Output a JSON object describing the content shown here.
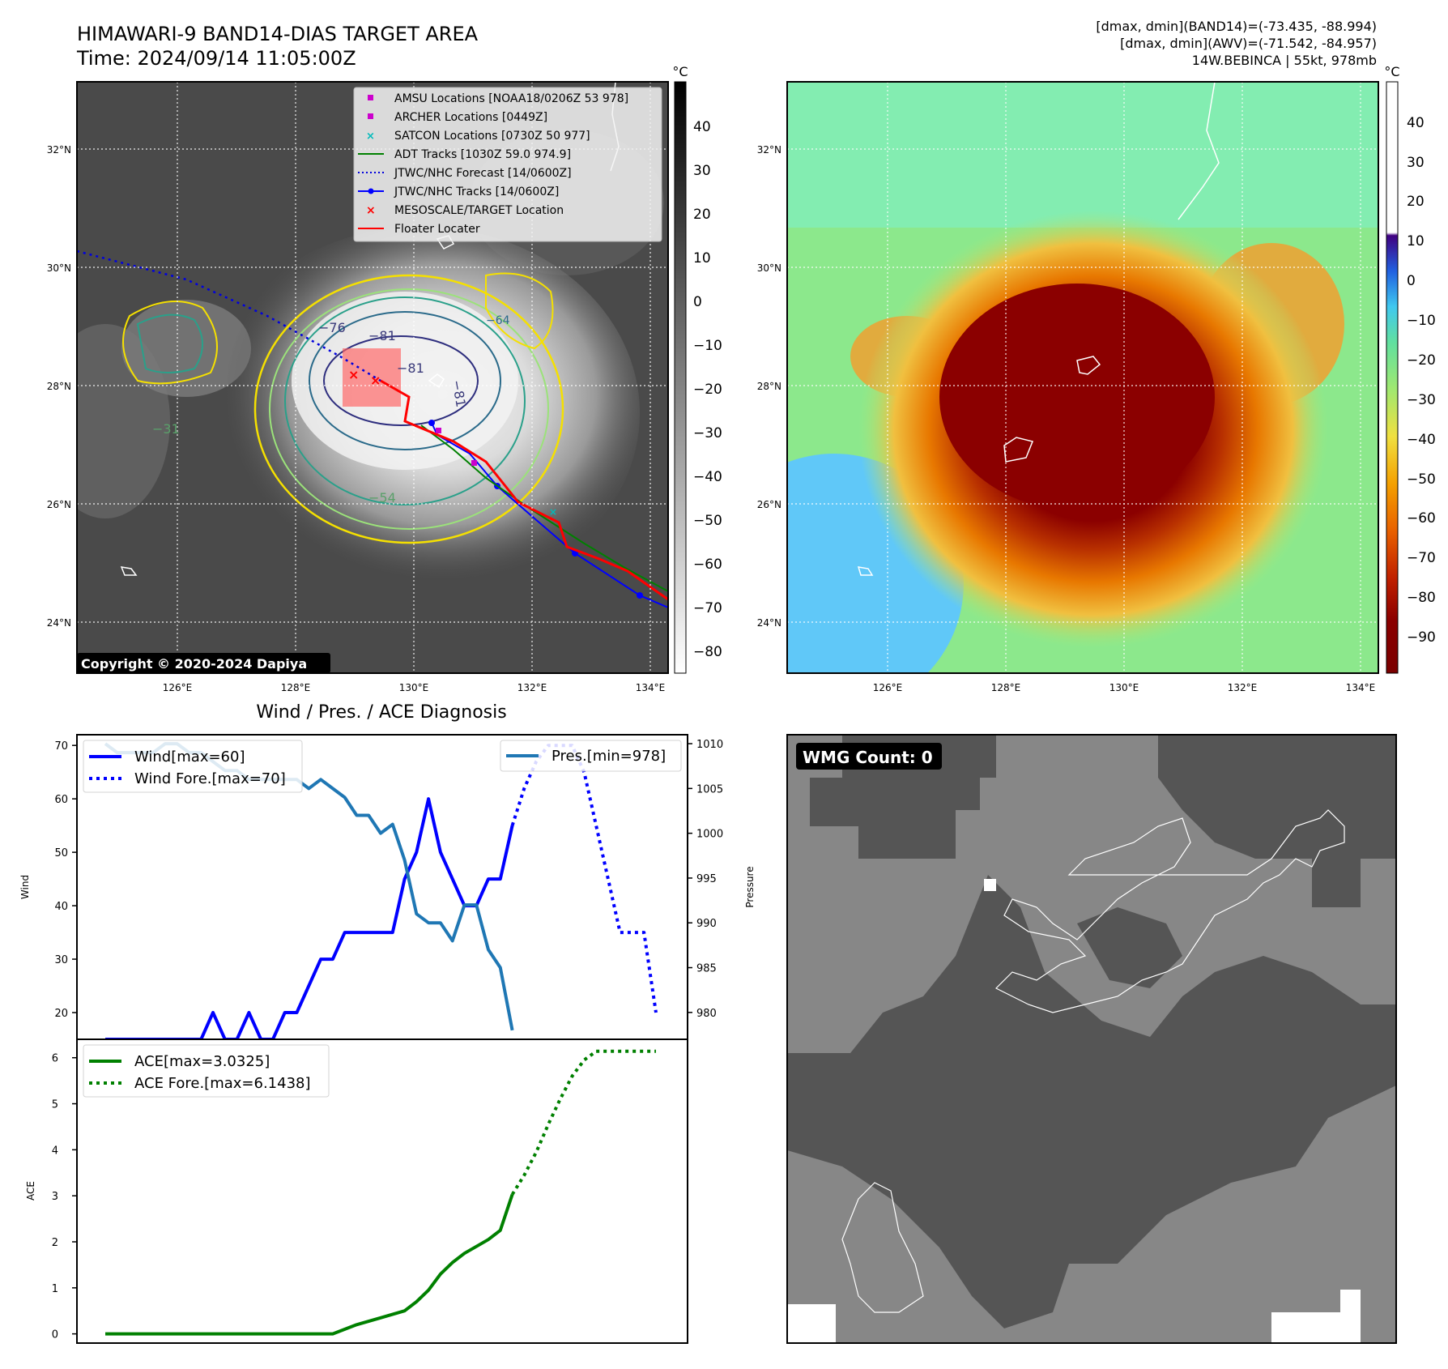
{
  "header": {
    "title_line1": "HIMAWARI-9 BAND14-DIAS TARGET AREA",
    "title_line2": "Time: 2024/09/14 11:05:00Z",
    "info_line1": "[dmax, dmin](BAND14)=(-73.435, -88.994)",
    "info_line2": "[dmax, dmin](AWV)=(-71.542, -84.957)",
    "info_line3": "14W.BEBINCA | 55kt, 978mb"
  },
  "ir_map": {
    "copyright": "Copyright © 2020-2024 Dapiya",
    "lat_labels": [
      "32°N",
      "30°N",
      "28°N",
      "26°N",
      "24°N"
    ],
    "lon_labels": [
      "126°E",
      "128°E",
      "130°E",
      "132°E",
      "134°E"
    ],
    "colorbar_unit": "°C",
    "colorbar_ticks": [
      "40",
      "30",
      "20",
      "10",
      "0",
      "−10",
      "−20",
      "−30",
      "−40",
      "−50",
      "−60",
      "−70",
      "−80"
    ],
    "contour_labels": [
      "−76",
      "−81",
      "−81",
      "−81",
      "−64",
      "−31",
      "−54"
    ],
    "legend": [
      "AMSU Locations [NOAA18/0206Z 53 978]",
      "ARCHER Locations [0449Z]",
      "SATCON Locations [0730Z 50 977]",
      "ADT Tracks [1030Z 59.0 974.9]",
      "JTWC/NHC Forecast [14/0600Z]",
      "JTWC/NHC Tracks [14/0600Z]",
      "MESOSCALE/TARGET Location",
      "Floater Locater"
    ]
  },
  "color_map": {
    "lat_labels": [
      "32°N",
      "30°N",
      "28°N",
      "26°N",
      "24°N"
    ],
    "lon_labels": [
      "126°E",
      "128°E",
      "130°E",
      "132°E",
      "134°E"
    ],
    "colorbar_unit": "°C",
    "colorbar_ticks": [
      "40",
      "30",
      "20",
      "10",
      "0",
      "−10",
      "−20",
      "−30",
      "−40",
      "−50",
      "−60",
      "−70",
      "−80",
      "−90"
    ]
  },
  "wmg": {
    "label": "WMG Count: 0"
  },
  "colors": {
    "wind": "#0000ff",
    "pressure": "#1f77b4",
    "ace": "#008000",
    "target": "#ff0000"
  },
  "chart_data": [
    {
      "type": "line",
      "title": "Wind / Pres. / ACE Diagnosis",
      "xlabel": "",
      "ylabel": "Wind",
      "ylabel_right": "Pressure",
      "ylim": [
        15,
        72
      ],
      "ylim_right": [
        977,
        1011
      ],
      "yticks": [
        20,
        30,
        40,
        50,
        60,
        70
      ],
      "yticks_right": [
        980,
        985,
        990,
        995,
        1000,
        1005,
        1010
      ],
      "legend_left": [
        "Wind[max=60]",
        "Wind Fore.[max=70]"
      ],
      "legend_right": [
        "Pres.[min=978]"
      ],
      "series": [
        {
          "name": "Wind",
          "style": "solid",
          "axis": "left",
          "x": [
            0,
            1,
            2,
            3,
            4,
            5,
            6,
            7,
            8,
            9,
            10,
            11,
            12,
            13,
            14,
            15,
            16,
            17,
            18,
            19,
            20,
            21,
            22,
            23,
            24,
            25,
            26,
            27,
            28,
            29,
            30,
            31,
            32,
            33,
            34
          ],
          "values": [
            15,
            15,
            15,
            15,
            15,
            15,
            15,
            15,
            15,
            20,
            15,
            15,
            20,
            15,
            15,
            20,
            20,
            25,
            30,
            30,
            35,
            35,
            35,
            35,
            35,
            45,
            50,
            60,
            50,
            45,
            40,
            40,
            45,
            45,
            55
          ]
        },
        {
          "name": "Wind Fore.",
          "style": "dotted",
          "axis": "left",
          "x": [
            34,
            35,
            36,
            37,
            38,
            39,
            40,
            41,
            42,
            43,
            44,
            45,
            46
          ],
          "values": [
            55,
            62,
            67,
            70,
            70,
            70,
            65,
            55,
            45,
            35,
            35,
            35,
            20
          ]
        },
        {
          "name": "Pres.",
          "style": "solid",
          "axis": "right",
          "x": [
            0,
            1,
            2,
            3,
            4,
            5,
            6,
            7,
            8,
            9,
            10,
            11,
            12,
            13,
            14,
            15,
            16,
            17,
            18,
            19,
            20,
            21,
            22,
            23,
            24,
            25,
            26,
            27,
            28,
            29,
            30,
            31,
            32,
            33,
            34
          ],
          "values": [
            1010,
            1009,
            1009,
            1009,
            1009,
            1010,
            1010,
            1009,
            1009,
            1008,
            1007,
            1007,
            1006,
            1006,
            1006,
            1006,
            1006,
            1005,
            1006,
            1005,
            1004,
            1002,
            1002,
            1000,
            1001,
            997,
            991,
            990,
            990,
            988,
            992,
            992,
            987,
            985,
            978
          ]
        }
      ]
    },
    {
      "type": "line",
      "ylabel": "ACE",
      "ylim": [
        -0.2,
        6.4
      ],
      "yticks": [
        0,
        1,
        2,
        3,
        4,
        5,
        6
      ],
      "legend": [
        "ACE[max=3.0325]",
        "ACE Fore.[max=6.1438]"
      ],
      "series": [
        {
          "name": "ACE",
          "style": "solid",
          "x": [
            0,
            5,
            10,
            15,
            19,
            21,
            23,
            25,
            26,
            27,
            28,
            29,
            30,
            31,
            32,
            33,
            34
          ],
          "values": [
            0,
            0,
            0,
            0,
            0,
            0.2,
            0.35,
            0.5,
            0.7,
            0.95,
            1.3,
            1.55,
            1.75,
            1.9,
            2.05,
            2.25,
            3.03
          ]
        },
        {
          "name": "ACE Fore.",
          "style": "dotted",
          "x": [
            34,
            35,
            36,
            37,
            38,
            39,
            40,
            41,
            42,
            43,
            44,
            45,
            46
          ],
          "values": [
            3.03,
            3.45,
            3.95,
            4.55,
            5.1,
            5.6,
            5.95,
            6.14,
            6.14,
            6.14,
            6.14,
            6.14,
            6.14
          ]
        }
      ]
    }
  ]
}
